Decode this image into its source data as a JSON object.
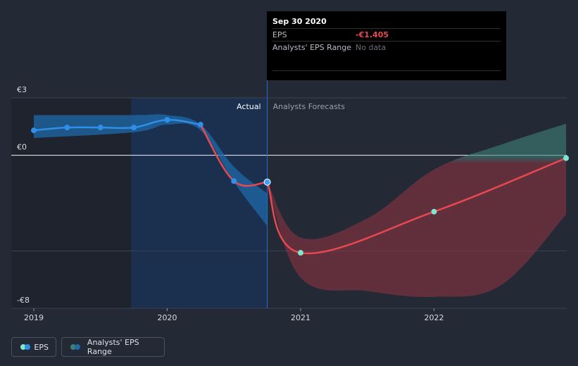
{
  "chart_data": {
    "type": "line",
    "y_tick_labels": [
      {
        "value": 3,
        "label": "€3"
      },
      {
        "value": 0,
        "label": "€0"
      },
      {
        "value": -8,
        "label": "-€8"
      }
    ],
    "ylim": [
      -8,
      3
    ],
    "gridline_values": [
      3,
      0,
      -5,
      -8
    ],
    "x_tick_labels": [
      {
        "value": 2019.0,
        "label": "2019"
      },
      {
        "value": 2020.0,
        "label": "2020"
      },
      {
        "value": 2021.0,
        "label": "2021"
      },
      {
        "value": 2022.0,
        "label": "2022"
      }
    ],
    "xlim": [
      2018.83,
      2023.0
    ],
    "divider_x": 2020.75,
    "region_labels": {
      "actual": "Actual",
      "forecast": "Analysts Forecasts"
    },
    "eps_actual": [
      {
        "x": 2019.0,
        "y": 1.3
      },
      {
        "x": 2019.25,
        "y": 1.45
      },
      {
        "x": 2019.5,
        "y": 1.45
      },
      {
        "x": 2019.75,
        "y": 1.45
      },
      {
        "x": 2020.0,
        "y": 1.85
      },
      {
        "x": 2020.25,
        "y": 1.6
      },
      {
        "x": 2020.5,
        "y": -1.35
      },
      {
        "x": 2020.75,
        "y": -1.405
      }
    ],
    "eps_forecast": [
      {
        "x": 2020.75,
        "y": -1.405
      },
      {
        "x": 2021.0,
        "y": -5.1
      },
      {
        "x": 2022.0,
        "y": -2.95
      },
      {
        "x": 2022.99,
        "y": -0.15
      }
    ],
    "actual_range_upper": [
      {
        "x": 2019.0,
        "y": 2.1
      },
      {
        "x": 2019.75,
        "y": 2.1
      },
      {
        "x": 2020.0,
        "y": 2.1
      },
      {
        "x": 2020.25,
        "y": 1.6
      },
      {
        "x": 2020.5,
        "y": -0.6
      },
      {
        "x": 2020.75,
        "y": -2.0
      }
    ],
    "actual_range_lower": [
      {
        "x": 2019.0,
        "y": 0.9
      },
      {
        "x": 2019.75,
        "y": 1.2
      },
      {
        "x": 2020.0,
        "y": 1.6
      },
      {
        "x": 2020.25,
        "y": 1.3
      },
      {
        "x": 2020.5,
        "y": -1.4
      },
      {
        "x": 2020.75,
        "y": -3.7
      }
    ],
    "forecast_range_upper": [
      {
        "x": 2020.75,
        "y": -1.405
      },
      {
        "x": 2021.0,
        "y": -4.3
      },
      {
        "x": 2021.5,
        "y": -3.3
      },
      {
        "x": 2022.0,
        "y": -0.75
      },
      {
        "x": 2022.5,
        "y": 0.55
      },
      {
        "x": 2022.99,
        "y": 1.65
      }
    ],
    "forecast_range_lower": [
      {
        "x": 2020.75,
        "y": -1.405
      },
      {
        "x": 2021.0,
        "y": -6.4
      },
      {
        "x": 2021.5,
        "y": -7.1
      },
      {
        "x": 2022.0,
        "y": -7.4
      },
      {
        "x": 2022.5,
        "y": -6.8
      },
      {
        "x": 2022.99,
        "y": -3.1
      }
    ]
  },
  "tooltip": {
    "date": "Sep 30 2020",
    "eps_label": "EPS",
    "eps_value": "-€1.405",
    "range_label": "Analysts' EPS Range",
    "range_value": "No data"
  },
  "legend": {
    "eps_label": "EPS",
    "range_label": "Analysts' EPS Range"
  },
  "colors": {
    "eps_actual": "#2f8fe6",
    "eps_forecast": "#e8484f",
    "forecast_point": "#7ee7d0",
    "actual_band": "#1f6aa8",
    "forecast_band_red": "#8a3340",
    "forecast_band_teal": "#3f7f78",
    "actual_region": "#1b2f4f"
  }
}
